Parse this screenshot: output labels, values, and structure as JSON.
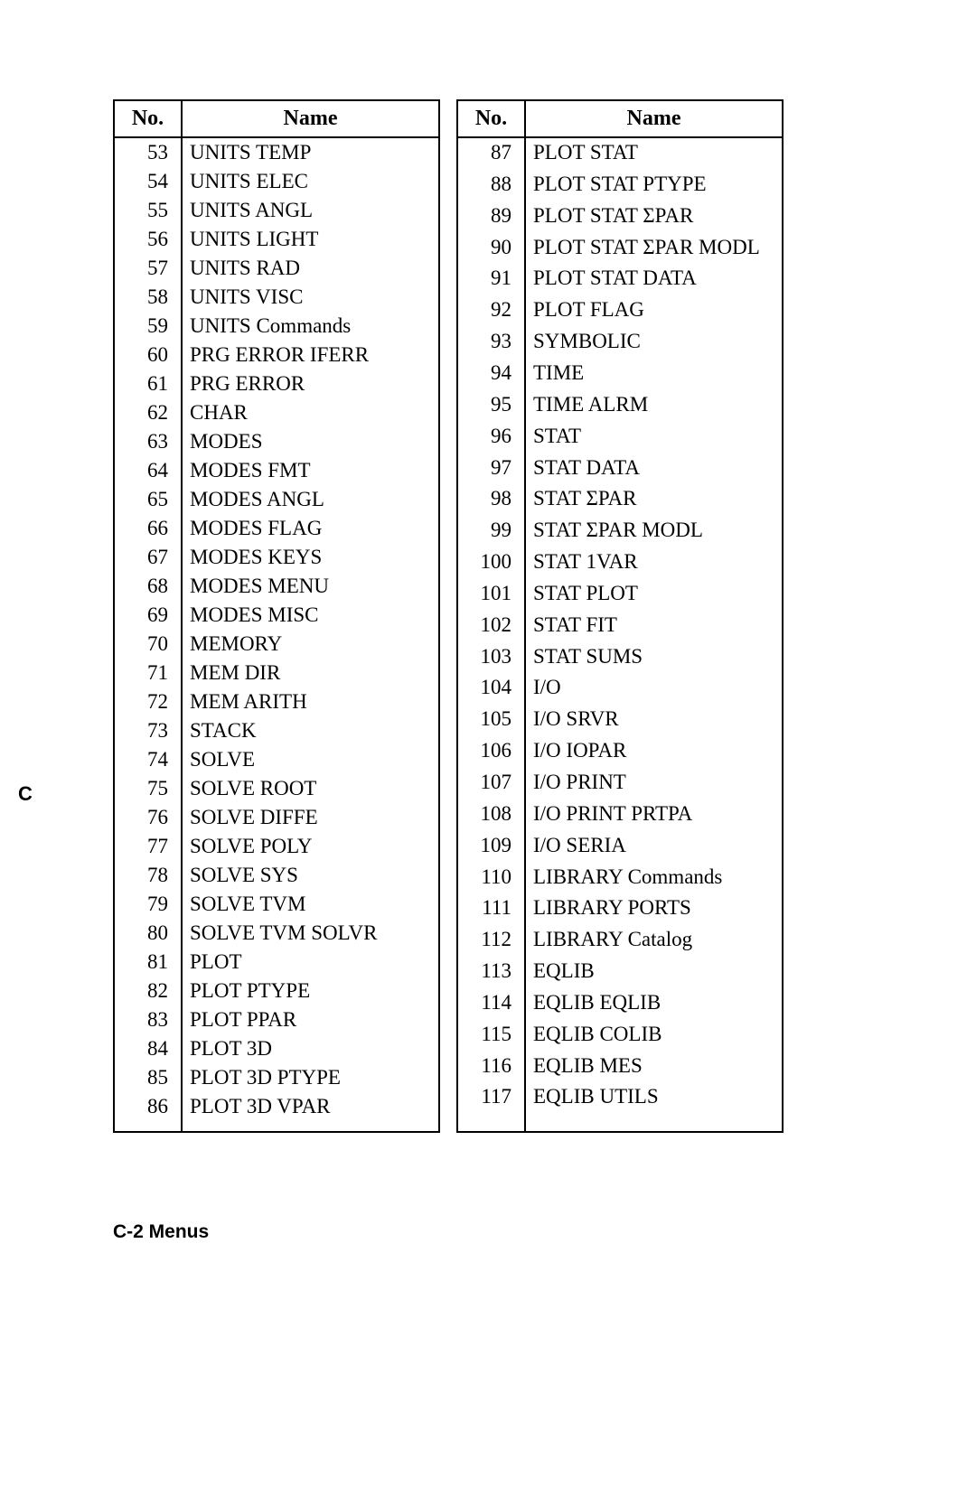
{
  "tables": {
    "left": {
      "headers": {
        "no": "No.",
        "name": "Name"
      },
      "column_widths": {
        "no": 75,
        "name": 285
      },
      "rows": [
        {
          "no": "53",
          "name": "UNITS TEMP"
        },
        {
          "no": "54",
          "name": "UNITS ELEC"
        },
        {
          "no": "55",
          "name": "UNITS ANGL"
        },
        {
          "no": "56",
          "name": "UNITS LIGHT"
        },
        {
          "no": "57",
          "name": "UNITS RAD"
        },
        {
          "no": "58",
          "name": "UNITS VISC"
        },
        {
          "no": "59",
          "name": "UNITS Commands"
        },
        {
          "no": "60",
          "name": "PRG ERROR IFERR"
        },
        {
          "no": "61",
          "name": "PRG ERROR"
        },
        {
          "no": "62",
          "name": "CHAR"
        },
        {
          "no": "63",
          "name": "MODES"
        },
        {
          "no": "64",
          "name": "MODES FMT"
        },
        {
          "no": "65",
          "name": "MODES ANGL"
        },
        {
          "no": "66",
          "name": "MODES FLAG"
        },
        {
          "no": "67",
          "name": "MODES KEYS"
        },
        {
          "no": "68",
          "name": "MODES MENU"
        },
        {
          "no": "69",
          "name": "MODES MISC"
        },
        {
          "no": "70",
          "name": "MEMORY"
        },
        {
          "no": "71",
          "name": "MEM DIR"
        },
        {
          "no": "72",
          "name": "MEM ARITH"
        },
        {
          "no": "73",
          "name": "STACK"
        },
        {
          "no": "74",
          "name": "SOLVE"
        },
        {
          "no": "75",
          "name": "SOLVE ROOT"
        },
        {
          "no": "76",
          "name": "SOLVE DIFFE"
        },
        {
          "no": "77",
          "name": "SOLVE POLY"
        },
        {
          "no": "78",
          "name": "SOLVE SYS"
        },
        {
          "no": "79",
          "name": "SOLVE TVM"
        },
        {
          "no": "80",
          "name": "SOLVE TVM SOLVR"
        },
        {
          "no": "81",
          "name": "PLOT"
        },
        {
          "no": "82",
          "name": "PLOT PTYPE"
        },
        {
          "no": "83",
          "name": "PLOT PPAR"
        },
        {
          "no": "84",
          "name": "PLOT 3D"
        },
        {
          "no": "85",
          "name": "PLOT 3D PTYPE"
        },
        {
          "no": "86",
          "name": "PLOT 3D VPAR"
        }
      ]
    },
    "right": {
      "headers": {
        "no": "No.",
        "name": "Name"
      },
      "column_widths": {
        "no": 75,
        "name": 285
      },
      "rows": [
        {
          "no": "87",
          "name": "PLOT STAT"
        },
        {
          "no": "88",
          "name": "PLOT STAT PTYPE"
        },
        {
          "no": "89",
          "name": "PLOT STAT ΣPAR"
        },
        {
          "no": "90",
          "name": "PLOT STAT ΣPAR MODL"
        },
        {
          "no": "91",
          "name": "PLOT STAT DATA"
        },
        {
          "no": "92",
          "name": "PLOT FLAG"
        },
        {
          "no": "93",
          "name": "SYMBOLIC"
        },
        {
          "no": "94",
          "name": "TIME"
        },
        {
          "no": "95",
          "name": "TIME ALRM"
        },
        {
          "no": "96",
          "name": "STAT"
        },
        {
          "no": "97",
          "name": "STAT DATA"
        },
        {
          "no": "98",
          "name": "STAT ΣPAR"
        },
        {
          "no": "99",
          "name": "STAT ΣPAR MODL"
        },
        {
          "no": "100",
          "name": "STAT 1VAR"
        },
        {
          "no": "101",
          "name": "STAT PLOT"
        },
        {
          "no": "102",
          "name": "STAT FIT"
        },
        {
          "no": "103",
          "name": "STAT SUMS"
        },
        {
          "no": "104",
          "name": "I/O"
        },
        {
          "no": "105",
          "name": "I/O SRVR"
        },
        {
          "no": "106",
          "name": "I/O IOPAR"
        },
        {
          "no": "107",
          "name": "I/O PRINT"
        },
        {
          "no": "108",
          "name": "I/O PRINT PRTPA"
        },
        {
          "no": "109",
          "name": "I/O SERIA"
        },
        {
          "no": "110",
          "name": "LIBRARY Commands"
        },
        {
          "no": "111",
          "name": "LIBRARY PORTS"
        },
        {
          "no": "112",
          "name": "LIBRARY Catalog"
        },
        {
          "no": "113",
          "name": "EQLIB"
        },
        {
          "no": "114",
          "name": "EQLIB EQLIB"
        },
        {
          "no": "115",
          "name": "EQLIB COLIB"
        },
        {
          "no": "116",
          "name": "EQLIB MES"
        },
        {
          "no": "117",
          "name": "EQLIB UTILS"
        },
        {
          "no": "",
          "name": ""
        }
      ]
    }
  },
  "side_marker": "C",
  "footer": "C-2  Menus",
  "styling": {
    "page_bg": "#ffffff",
    "border_color": "#000000",
    "text_color": "#000000",
    "header_fontsize": 24,
    "cell_fontsize": 23,
    "footer_fontsize": 21,
    "body_font": "Georgia, 'Times New Roman', serif",
    "footer_font": "Arial, sans-serif"
  }
}
